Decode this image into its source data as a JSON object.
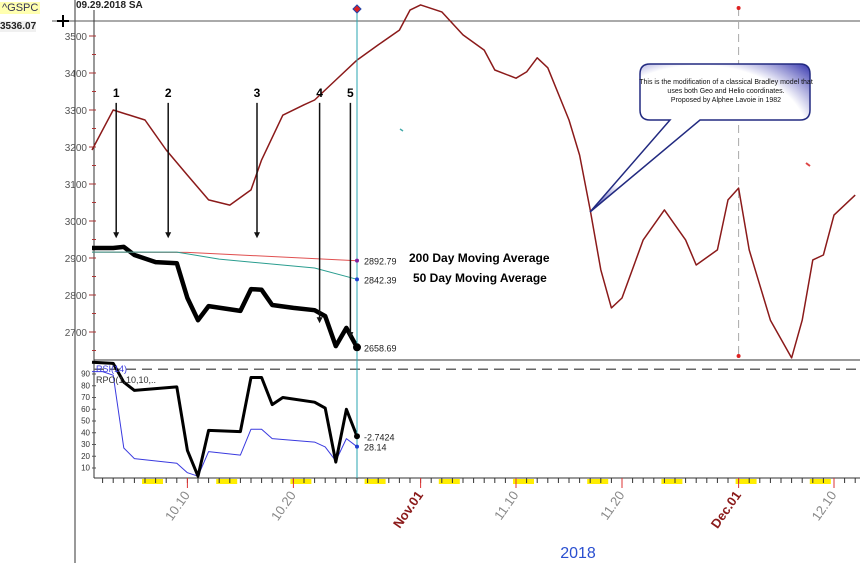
{
  "header": {
    "symbol": "^GSPC",
    "date_label": "09.29.2018 SA",
    "cursor_value": "3536.07"
  },
  "colors": {
    "bradley": "#8b1a1a",
    "price": "#000000",
    "ma200": "#e05050",
    "ma50": "#2a9d8f",
    "rsi": "#3a3adf",
    "cursor": "#2aa6b0",
    "month_label": "#8b1a1a",
    "year_label": "#2a4fd0",
    "weekend": "#ffee00"
  },
  "callout": {
    "lines": [
      "This is the modification of a classical Bradley model that",
      "uses both Geo and Helio coordinates.",
      "Proposed by Alphee Lavoie in 1982"
    ]
  },
  "chart_data": [
    {
      "type": "line",
      "panel": "price",
      "ylim": [
        2620,
        3600
      ],
      "yticks": [
        2700,
        2800,
        2900,
        3000,
        3100,
        3200,
        3300,
        3400,
        3500
      ],
      "xlim": [
        "2018-10-01",
        "2018-12-12"
      ],
      "xticks": [
        {
          "date": "2018-10-10",
          "label": "10.10",
          "month": false
        },
        {
          "date": "2018-10-20",
          "label": "10.20",
          "month": false
        },
        {
          "date": "2018-11-01",
          "label": "Nov.01",
          "month": true
        },
        {
          "date": "2018-11-10",
          "label": "11.10",
          "month": false
        },
        {
          "date": "2018-11-20",
          "label": "11.20",
          "month": false
        },
        {
          "date": "2018-12-01",
          "label": "Dec.01",
          "month": true
        },
        {
          "date": "2018-12-10",
          "label": "12.10",
          "month": false
        }
      ],
      "xlabel": "2018",
      "series": [
        {
          "key": "bradley",
          "x": [
            "2018-10-01",
            "2018-10-03",
            "2018-10-06",
            "2018-10-08",
            "2018-10-10",
            "2018-10-12",
            "2018-10-14",
            "2018-10-16",
            "2018-10-17",
            "2018-10-19",
            "2018-10-21",
            "2018-10-22",
            "2018-10-24",
            "2018-10-26",
            "2018-10-28",
            "2018-10-30",
            "2018-10-31",
            "2018-11-01",
            "2018-11-03",
            "2018-11-05",
            "2018-11-07",
            "2018-11-08",
            "2018-11-10",
            "2018-11-11",
            "2018-11-12",
            "2018-11-13",
            "2018-11-15",
            "2018-11-16",
            "2018-11-17",
            "2018-11-18",
            "2018-11-19",
            "2018-11-20",
            "2018-11-22",
            "2018-11-24",
            "2018-11-26",
            "2018-11-27",
            "2018-11-29",
            "2018-11-30",
            "2018-12-01",
            "2018-12-02",
            "2018-12-04",
            "2018-12-06",
            "2018-12-07",
            "2018-12-08",
            "2018-12-09",
            "2018-12-10",
            "2018-12-12"
          ],
          "y": [
            3192,
            3300,
            3273,
            3192,
            3124,
            3057,
            3043,
            3084,
            3165,
            3286,
            3314,
            3327,
            3381,
            3435,
            3476,
            3516,
            3570,
            3584,
            3565,
            3503,
            3462,
            3408,
            3386,
            3403,
            3441,
            3414,
            3273,
            3178,
            3030,
            2868,
            2765,
            2792,
            2949,
            3030,
            2949,
            2881,
            2922,
            3057,
            3089,
            2922,
            2732,
            2630,
            2732,
            2895,
            2908,
            3016,
            3070
          ]
        },
        {
          "key": "price",
          "x": [
            "2018-10-01",
            "2018-10-03",
            "2018-10-04",
            "2018-10-05",
            "2018-10-07",
            "2018-10-09",
            "2018-10-10",
            "2018-10-11",
            "2018-10-12",
            "2018-10-15",
            "2018-10-16",
            "2018-10-17",
            "2018-10-18",
            "2018-10-20",
            "2018-10-22",
            "2018-10-23",
            "2018-10-24",
            "2018-10-25",
            "2018-10-26"
          ],
          "y": [
            2927,
            2927,
            2930,
            2908,
            2889,
            2886,
            2792,
            2732,
            2770,
            2757,
            2816,
            2814,
            2773,
            2765,
            2759,
            2743,
            2662,
            2711,
            2658.69
          ],
          "last_label": "2658.69"
        },
        {
          "key": "ma200",
          "name": "200 Day Moving Average",
          "x": [
            "2018-10-01",
            "2018-10-10",
            "2018-10-26"
          ],
          "y": [
            2916,
            2915,
            2892.79
          ],
          "last_label": "2892.79"
        },
        {
          "key": "ma50",
          "name": "50 Day Moving Average",
          "x": [
            "2018-10-01",
            "2018-10-09",
            "2018-10-13",
            "2018-10-22",
            "2018-10-26"
          ],
          "y": [
            2916,
            2916,
            2897,
            2873,
            2842.39
          ],
          "last_label": "2842.39"
        }
      ],
      "annotations": [
        {
          "label": "1",
          "date": "2018-10-03",
          "from": 3330,
          "to": 2940
        },
        {
          "label": "2",
          "date": "2018-10-08",
          "from": 3330,
          "to": 2940
        },
        {
          "label": "3",
          "date": "2018-10-16",
          "from": 3330,
          "to": 2940
        },
        {
          "label": "4",
          "date": "2018-10-22",
          "from": 3330,
          "to": 2710
        },
        {
          "label": "5",
          "date": "2018-10-25",
          "from": 3330,
          "to": 2670
        }
      ]
    },
    {
      "type": "line",
      "panel": "oscillator",
      "ylim": [
        0,
        100
      ],
      "yticks": [
        10,
        20,
        30,
        40,
        50,
        60,
        70,
        80,
        90
      ],
      "series": [
        {
          "key": "rsi",
          "name": "RSI(14)",
          "x": [
            "2018-10-01",
            "2018-10-02",
            "2018-10-03",
            "2018-10-04",
            "2018-10-05",
            "2018-10-09",
            "2018-10-10",
            "2018-10-11",
            "2018-10-12",
            "2018-10-15",
            "2018-10-16",
            "2018-10-17",
            "2018-10-18",
            "2018-10-22",
            "2018-10-23",
            "2018-10-24",
            "2018-10-25",
            "2018-10-26"
          ],
          "y": [
            92,
            92,
            89,
            27,
            18,
            14,
            6,
            3,
            24,
            21,
            43,
            43,
            35,
            32,
            28,
            16,
            35,
            28.14
          ],
          "last_label": "28.14"
        },
        {
          "key": "rpo",
          "name": "RPO(1,10,10,..",
          "x": [
            "2018-10-01",
            "2018-10-03",
            "2018-10-04",
            "2018-10-05",
            "2018-10-09",
            "2018-10-10",
            "2018-10-11",
            "2018-10-12",
            "2018-10-15",
            "2018-10-16",
            "2018-10-17",
            "2018-10-18",
            "2018-10-19",
            "2018-10-22",
            "2018-10-23",
            "2018-10-24",
            "2018-10-25",
            "2018-10-26"
          ],
          "y": [
            100,
            99,
            83,
            76,
            79,
            25,
            3,
            42,
            41,
            87,
            87,
            64,
            70,
            66,
            61,
            15,
            60,
            37
          ],
          "last_label": "-2.7424"
        }
      ],
      "reference_level": 94
    }
  ]
}
